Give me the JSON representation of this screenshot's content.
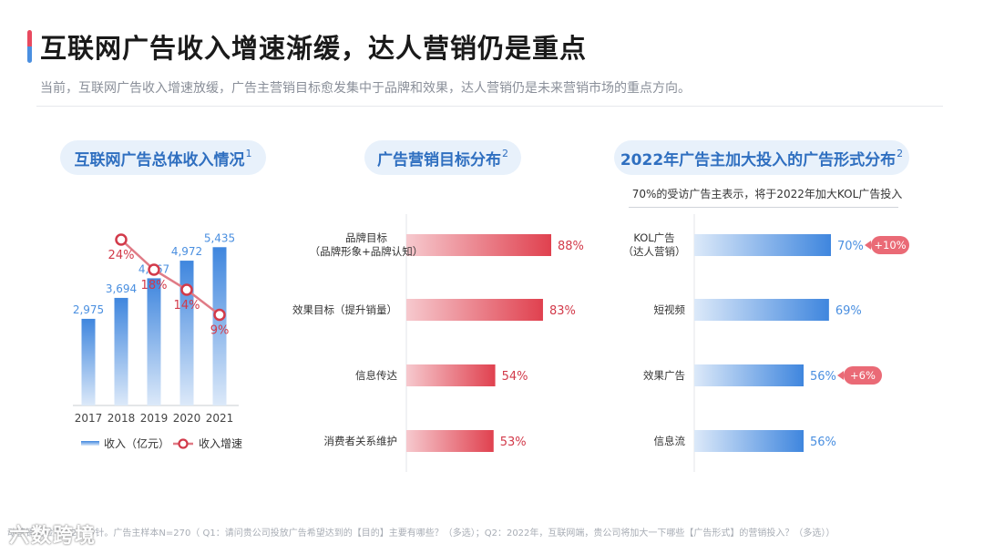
{
  "header": {
    "title": "互联网广告收入增速渐缓，达人营销仍是重点",
    "subtitle": "当前，互联网广告收入增速放缓，广告主营销目标愈发集中于品牌和效果，达人营销仍是未来营销市场的重点方向。"
  },
  "panels": {
    "p1_title": "互联网广告总体收入情况",
    "p1_sup": "1",
    "p2_title": "广告营销目标分布",
    "p2_sup": "2",
    "p3_title": "2022年广告主加大投入的广告形式分布",
    "p3_sup": "2",
    "p3_note": "70%的受访广告主表示，将于2022年加大KOL广告投入"
  },
  "footer": {
    "text": "动营销实验室；2、秒针。广告主样本N=270（ Q1：请问贵公司投放广告希望达到的【目的】主要有哪些？（多选）；Q2：2022年，互联网端，贵公司将加大一下哪些【广告形式】的营销投入？（多选））",
    "watermark": "六数跨境"
  },
  "colors": {
    "blue": "#4a8fe0",
    "red": "#e0414f",
    "pill_bg": "#e8f1fb",
    "pill_text": "#2f6fc0"
  },
  "chart_data": [
    {
      "type": "bar",
      "categories": [
        "2017",
        "2018",
        "2019",
        "2020",
        "2021"
      ],
      "series": [
        {
          "name": "收入（亿元）",
          "values": [
            2975,
            3694,
            4367,
            4972,
            5435
          ],
          "labels": [
            "2,975",
            "3,694",
            "4,367",
            "4,972",
            "5,435"
          ]
        },
        {
          "name": "收入增速",
          "type": "line",
          "values": [
            null,
            24,
            18,
            14,
            9
          ],
          "labels": [
            "",
            "24%",
            "18%",
            "14%",
            "9%"
          ]
        }
      ],
      "legend": [
        "收入（亿元）",
        "收入增速"
      ]
    },
    {
      "type": "bar",
      "orientation": "horizontal",
      "categories": [
        [
          "品牌目标",
          "（品牌形象+品牌认知）"
        ],
        [
          "效果目标（提升销量）"
        ],
        [
          "信息传达"
        ],
        [
          "消费者关系维护"
        ]
      ],
      "values": [
        88,
        83,
        54,
        53
      ],
      "labels": [
        "88%",
        "83%",
        "54%",
        "53%"
      ]
    },
    {
      "type": "bar",
      "orientation": "horizontal",
      "categories": [
        [
          "KOL广告",
          "（达人营销）"
        ],
        [
          "短视频"
        ],
        [
          "效果广告"
        ],
        [
          "信息流"
        ]
      ],
      "values": [
        70,
        69,
        56,
        56
      ],
      "labels": [
        "70%",
        "69%",
        "56%",
        "56%"
      ],
      "badges": [
        "+10%",
        "",
        "+6%",
        ""
      ]
    }
  ]
}
